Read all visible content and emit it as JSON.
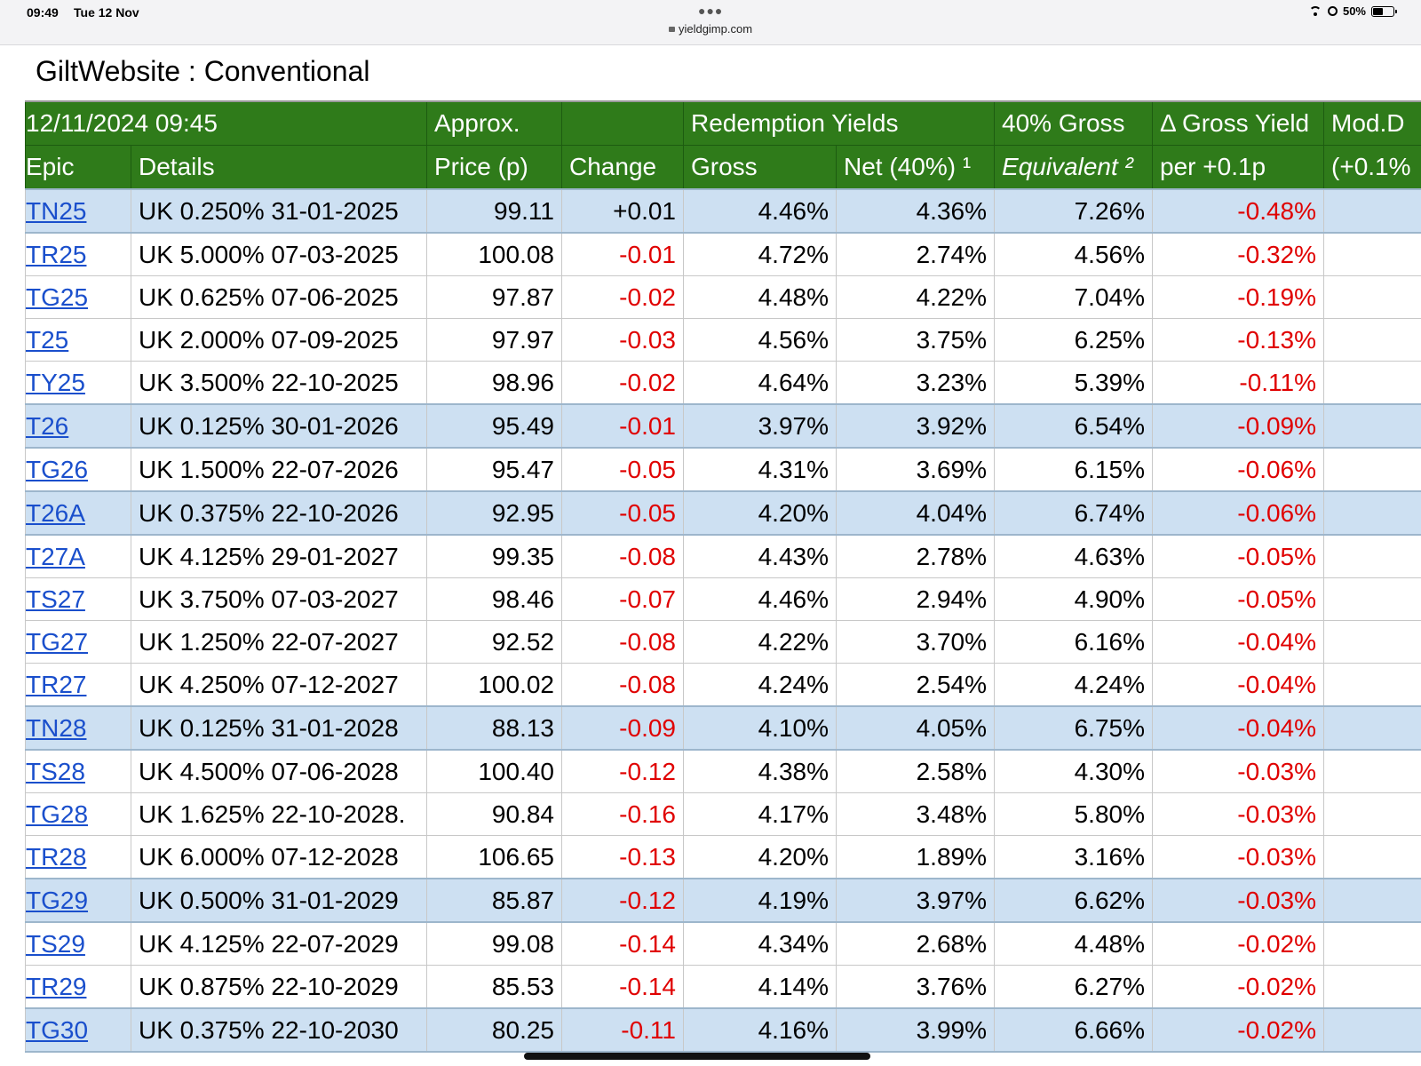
{
  "status_bar": {
    "time": "09:49",
    "date": "Tue 12 Nov",
    "url": "yieldgimp.com",
    "battery": "50%",
    "battery_level": 0.5,
    "icons": [
      "wifi-icon",
      "rotation-lock-icon",
      "battery-icon"
    ]
  },
  "page": {
    "title": "GiltWebsite : Conventional"
  },
  "table": {
    "timestamp": "12/11/2024 09:45",
    "header_top": {
      "approx": "Approx.",
      "redemption": "Redemption Yields",
      "gross40": "40% Gross",
      "delta": "Δ Gross Yield",
      "mod": "Mod.D"
    },
    "header_bottom": {
      "epic": "Epic",
      "details": "Details",
      "price": "Price (p)",
      "change": "Change",
      "gross": "Gross",
      "net": "Net (40%) ¹",
      "equivalent": "Equivalent ²",
      "per": "per +0.1p",
      "mod": "(+0.1%"
    },
    "colors": {
      "header_bg": "#2f7b1a",
      "highlight_row": "#cde0f2",
      "negative": "#e00000",
      "link": "#1a4fcc"
    },
    "rows": [
      {
        "epic": "TN25",
        "details": "UK 0.250% 31-01-2025",
        "price": "99.11",
        "change": "+0.01",
        "gross": "4.46%",
        "net": "4.36%",
        "equivalent": "7.26%",
        "delta": "-0.48%",
        "highlight": true
      },
      {
        "epic": "TR25",
        "details": "UK 5.000% 07-03-2025",
        "price": "100.08",
        "change": "-0.01",
        "gross": "4.72%",
        "net": "2.74%",
        "equivalent": "4.56%",
        "delta": "-0.32%",
        "highlight": false
      },
      {
        "epic": "TG25",
        "details": "UK 0.625% 07-06-2025",
        "price": "97.87",
        "change": "-0.02",
        "gross": "4.48%",
        "net": "4.22%",
        "equivalent": "7.04%",
        "delta": "-0.19%",
        "highlight": false
      },
      {
        "epic": "T25",
        "details": "UK 2.000% 07-09-2025",
        "price": "97.97",
        "change": "-0.03",
        "gross": "4.56%",
        "net": "3.75%",
        "equivalent": "6.25%",
        "delta": "-0.13%",
        "highlight": false
      },
      {
        "epic": "TY25",
        "details": "UK 3.500% 22-10-2025",
        "price": "98.96",
        "change": "-0.02",
        "gross": "4.64%",
        "net": "3.23%",
        "equivalent": "5.39%",
        "delta": "-0.11%",
        "highlight": false
      },
      {
        "epic": "T26",
        "details": "UK 0.125% 30-01-2026",
        "price": "95.49",
        "change": "-0.01",
        "gross": "3.97%",
        "net": "3.92%",
        "equivalent": "6.54%",
        "delta": "-0.09%",
        "highlight": true
      },
      {
        "epic": "TG26",
        "details": "UK 1.500% 22-07-2026",
        "price": "95.47",
        "change": "-0.05",
        "gross": "4.31%",
        "net": "3.69%",
        "equivalent": "6.15%",
        "delta": "-0.06%",
        "highlight": false
      },
      {
        "epic": "T26A",
        "details": "UK 0.375% 22-10-2026",
        "price": "92.95",
        "change": "-0.05",
        "gross": "4.20%",
        "net": "4.04%",
        "equivalent": "6.74%",
        "delta": "-0.06%",
        "highlight": true
      },
      {
        "epic": "T27A",
        "details": "UK 4.125% 29-01-2027",
        "price": "99.35",
        "change": "-0.08",
        "gross": "4.43%",
        "net": "2.78%",
        "equivalent": "4.63%",
        "delta": "-0.05%",
        "highlight": false
      },
      {
        "epic": "TS27",
        "details": "UK 3.750% 07-03-2027",
        "price": "98.46",
        "change": "-0.07",
        "gross": "4.46%",
        "net": "2.94%",
        "equivalent": "4.90%",
        "delta": "-0.05%",
        "highlight": false
      },
      {
        "epic": "TG27",
        "details": "UK 1.250% 22-07-2027",
        "price": "92.52",
        "change": "-0.08",
        "gross": "4.22%",
        "net": "3.70%",
        "equivalent": "6.16%",
        "delta": "-0.04%",
        "highlight": false
      },
      {
        "epic": "TR27",
        "details": "UK 4.250% 07-12-2027",
        "price": "100.02",
        "change": "-0.08",
        "gross": "4.24%",
        "net": "2.54%",
        "equivalent": "4.24%",
        "delta": "-0.04%",
        "highlight": false
      },
      {
        "epic": "TN28",
        "details": "UK 0.125% 31-01-2028",
        "price": "88.13",
        "change": "-0.09",
        "gross": "4.10%",
        "net": "4.05%",
        "equivalent": "6.75%",
        "delta": "-0.04%",
        "highlight": true
      },
      {
        "epic": "TS28",
        "details": "UK 4.500% 07-06-2028",
        "price": "100.40",
        "change": "-0.12",
        "gross": "4.38%",
        "net": "2.58%",
        "equivalent": "4.30%",
        "delta": "-0.03%",
        "highlight": false
      },
      {
        "epic": "TG28",
        "details": "UK 1.625% 22-10-2028.",
        "price": "90.84",
        "change": "-0.16",
        "gross": "4.17%",
        "net": "3.48%",
        "equivalent": "5.80%",
        "delta": "-0.03%",
        "highlight": false
      },
      {
        "epic": "TR28",
        "details": "UK 6.000% 07-12-2028",
        "price": "106.65",
        "change": "-0.13",
        "gross": "4.20%",
        "net": "1.89%",
        "equivalent": "3.16%",
        "delta": "-0.03%",
        "highlight": false
      },
      {
        "epic": "TG29",
        "details": "UK 0.500% 31-01-2029",
        "price": "85.87",
        "change": "-0.12",
        "gross": "4.19%",
        "net": "3.97%",
        "equivalent": "6.62%",
        "delta": "-0.03%",
        "highlight": true
      },
      {
        "epic": "TS29",
        "details": "UK 4.125% 22-07-2029",
        "price": "99.08",
        "change": "-0.14",
        "gross": "4.34%",
        "net": "2.68%",
        "equivalent": "4.48%",
        "delta": "-0.02%",
        "highlight": false
      },
      {
        "epic": "TR29",
        "details": "UK 0.875% 22-10-2029",
        "price": "85.53",
        "change": "-0.14",
        "gross": "4.14%",
        "net": "3.76%",
        "equivalent": "6.27%",
        "delta": "-0.02%",
        "highlight": false
      },
      {
        "epic": "TG30",
        "details": "UK 0.375% 22-10-2030",
        "price": "80.25",
        "change": "-0.11",
        "gross": "4.16%",
        "net": "3.99%",
        "equivalent": "6.66%",
        "delta": "-0.02%",
        "highlight": true
      }
    ]
  }
}
